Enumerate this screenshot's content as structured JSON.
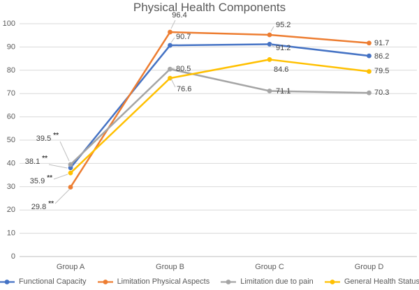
{
  "chart_data": {
    "type": "line",
    "title": "Physical Health Components",
    "categories": [
      "Group A",
      "Group B",
      "Group C",
      "Group D"
    ],
    "series": [
      {
        "name": "Functional Capacity",
        "color": "#4472C4",
        "values": [
          38.1,
          90.7,
          91.2,
          86.2
        ]
      },
      {
        "name": "Limitation Physical Aspects",
        "color": "#ED7D31",
        "values": [
          29.8,
          96.4,
          95.2,
          91.7
        ]
      },
      {
        "name": "Limitation due to pain",
        "color": "#A5A5A5",
        "values": [
          39.5,
          80.5,
          71.1,
          70.3
        ]
      },
      {
        "name": "General Health Status",
        "color": "#FFC000",
        "values": [
          35.9,
          76.6,
          84.6,
          79.5
        ]
      }
    ],
    "ylim": [
      0,
      100
    ],
    "ytick_step": 10,
    "grid": true,
    "legend_position": "bottom",
    "significance_marker": "**",
    "significance_on": "Group A",
    "label_decimals": 1,
    "colors": {
      "title_text": "#595959",
      "axis_text": "#595959",
      "data_label_text": "#404040",
      "gridline": "#D9D9D9",
      "axis_line": "#BFBFBF",
      "leader_line": "#BFBFBF"
    }
  }
}
